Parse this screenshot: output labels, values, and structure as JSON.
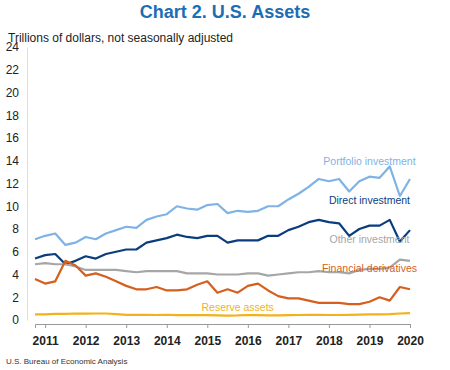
{
  "chart_data": {
    "type": "line",
    "title": "Chart 2. U.S. Assets",
    "subtitle": "Trillions of dollars, not seasonally adjusted",
    "source": "U.S. Bureau of Economic Analysis",
    "categories": [
      null,
      "2011",
      null,
      null,
      null,
      "2012",
      null,
      null,
      null,
      "2013",
      null,
      null,
      null,
      "2014",
      null,
      null,
      null,
      "2015",
      null,
      null,
      null,
      "2016",
      null,
      null,
      null,
      "2017",
      null,
      null,
      null,
      "2018",
      null,
      null,
      null,
      "2019",
      null,
      null,
      null,
      "2020"
    ],
    "series": [
      {
        "name": "Portfolio investment",
        "color": "#7fb2e5",
        "values": [
          7.1,
          7.4,
          7.6,
          6.6,
          6.8,
          7.3,
          7.1,
          7.6,
          7.9,
          8.2,
          8.1,
          8.8,
          9.1,
          9.3,
          10.0,
          9.8,
          9.7,
          10.1,
          10.2,
          9.4,
          9.6,
          9.5,
          9.6,
          10.0,
          10.0,
          10.6,
          11.1,
          11.7,
          12.4,
          12.2,
          12.4,
          11.3,
          12.2,
          12.6,
          12.5,
          13.5,
          10.9,
          12.4
        ]
      },
      {
        "name": "Direct investment",
        "color": "#0b3d7e",
        "values": [
          5.4,
          5.7,
          5.8,
          4.9,
          5.2,
          5.6,
          5.4,
          5.8,
          6.0,
          6.2,
          6.2,
          6.8,
          7.0,
          7.2,
          7.5,
          7.3,
          7.2,
          7.4,
          7.4,
          6.8,
          7.0,
          7.0,
          7.0,
          7.4,
          7.4,
          7.9,
          8.2,
          8.6,
          8.8,
          8.6,
          8.5,
          7.4,
          8.0,
          8.3,
          8.3,
          8.8,
          6.9,
          7.9
        ]
      },
      {
        "name": "Other investment",
        "color": "#a6a6a6",
        "values": [
          4.9,
          5.0,
          4.9,
          4.9,
          4.7,
          4.4,
          4.4,
          4.4,
          4.4,
          4.3,
          4.2,
          4.3,
          4.3,
          4.3,
          4.3,
          4.1,
          4.1,
          4.1,
          4.0,
          4.0,
          4.0,
          4.1,
          4.1,
          3.9,
          4.0,
          4.1,
          4.2,
          4.2,
          4.3,
          4.2,
          4.2,
          4.1,
          4.4,
          4.5,
          4.5,
          4.6,
          5.3,
          5.2
        ]
      },
      {
        "name": "Financial derivatives",
        "color": "#d55f1c",
        "values": [
          3.6,
          3.2,
          3.4,
          5.2,
          4.8,
          3.9,
          4.1,
          3.8,
          3.4,
          3.0,
          2.7,
          2.7,
          2.9,
          2.6,
          2.6,
          2.7,
          3.1,
          3.4,
          2.4,
          2.7,
          2.4,
          3.0,
          3.2,
          2.6,
          2.1,
          1.9,
          1.9,
          1.7,
          1.5,
          1.5,
          1.5,
          1.4,
          1.4,
          1.6,
          2.0,
          1.7,
          2.9,
          2.7
        ]
      },
      {
        "name": "Reserve assets",
        "color": "#f2b21c",
        "values": [
          0.49,
          0.5,
          0.54,
          0.54,
          0.57,
          0.56,
          0.57,
          0.57,
          0.52,
          0.45,
          0.46,
          0.45,
          0.44,
          0.46,
          0.43,
          0.43,
          0.43,
          0.42,
          0.4,
          0.38,
          0.4,
          0.44,
          0.43,
          0.41,
          0.41,
          0.43,
          0.44,
          0.45,
          0.45,
          0.44,
          0.44,
          0.45,
          0.47,
          0.49,
          0.49,
          0.51,
          0.57,
          0.6
        ]
      }
    ],
    "ylim": [
      0,
      24
    ],
    "yticks": [
      0,
      2,
      4,
      6,
      8,
      10,
      12,
      14,
      16,
      18,
      20,
      22,
      24
    ],
    "grid": false
  }
}
